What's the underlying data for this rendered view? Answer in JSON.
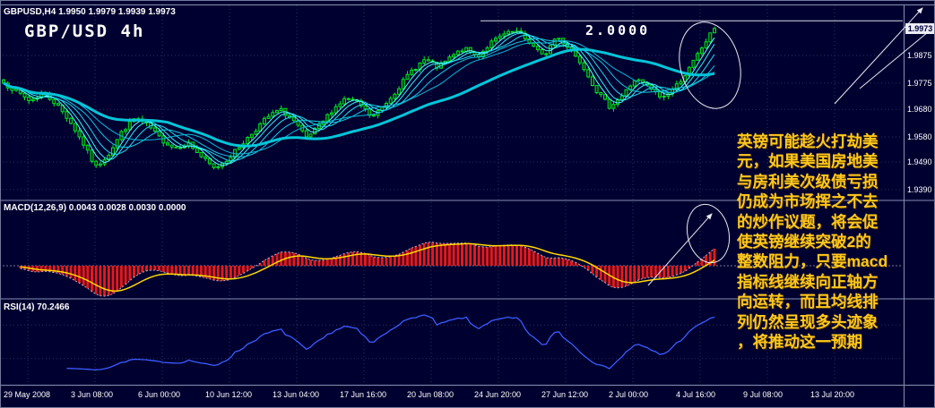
{
  "main_chart": {
    "title": "GBPUSD,H4 1.9950 1.9979 1.9939 1.9973",
    "big_label": "GBP/USD 4h",
    "resistance_label": "2.0000",
    "current_price_label": "1.9973"
  },
  "macd_panel": {
    "title": "MACD(12,26,9) 0.0043 0.0028 0.0030 0.0000"
  },
  "rsi_panel": {
    "title": "RSI(14) 70.2466"
  },
  "time_axis": {
    "labels": [
      "29 May 2008",
      "3 Jun 08:00",
      "6 Jun 00:00",
      "10 Jun 12:00",
      "13 Jun 04:00",
      "17 Jun 16:00",
      "20 Jun 08:00",
      "24 Jun 20:00",
      "27 Jun 12:00",
      "2 Jul 00:00",
      "4 Jul 16:00",
      "9 Jul 08:00",
      "13 Jul 20:00"
    ]
  },
  "annotation": {
    "lines": [
      "英镑可能趁火打劫美",
      "元，如果美国房地美",
      "与房利美次级债亏损",
      "仍成为市场挥之不去",
      "的炒作议题，将会促",
      "使英镑继续突破2的",
      "整数阻力，只要macd",
      "指标线继续向正轴方",
      "向运转，而且均线排",
      "列仍然呈现多头迹象",
      "，将推动这一预期"
    ]
  },
  "colors": {
    "background": "#000030",
    "grid": "#2e2e62",
    "candle": "#00e428",
    "candle_fill": "#062d0c",
    "ma_ribbon": [
      "#55ffff",
      "#33eef8",
      "#22dcee",
      "#11cbe2",
      "#06bad6"
    ],
    "ma_slow": "#00c6d8",
    "macd_hist": "#e81818",
    "macd_signal": "#ffd800",
    "macd_line": "#b8b8c8",
    "rsi": "#3c5cff",
    "annotation": "#ffc81e",
    "level_line": "#d8d8e8"
  },
  "chart_data": [
    {
      "type": "candlestick",
      "symbol": "GBPUSD",
      "period": "H4",
      "title": "GBPUSD,H4",
      "ohlc_display": {
        "open": "1.9950",
        "high": "1.9979",
        "low": "1.9939",
        "close": "1.9973"
      },
      "x_labels": [
        "29 May 2008",
        "3 Jun 08:00",
        "6 Jun 00:00",
        "10 Jun 12:00",
        "13 Jun 04:00",
        "17 Jun 16:00",
        "20 Jun 08:00",
        "24 Jun 20:00",
        "27 Jun 12:00",
        "2 Jul 00:00",
        "4 Jul 16:00",
        "9 Jul 08:00",
        "13 Jul 20:00"
      ],
      "y_ticks": [
        1.9875,
        1.9775,
        1.968,
        1.958,
        1.949,
        1.939
      ],
      "ylim": [
        1.9354,
        2.0056
      ],
      "resistance_level": 2.0,
      "current_price": 1.9973,
      "bars": 170,
      "close_samples": [
        1.9775,
        1.9745,
        1.971,
        1.974,
        1.97,
        1.964,
        1.956,
        1.947,
        1.952,
        1.96,
        1.965,
        1.962,
        1.957,
        1.954,
        1.956,
        1.951,
        1.9465,
        1.95,
        1.955,
        1.96,
        1.965,
        1.968,
        1.964,
        1.9575,
        1.962,
        1.968,
        1.972,
        1.97,
        1.965,
        1.97,
        1.976,
        1.982,
        1.986,
        1.983,
        1.987,
        1.99,
        1.987,
        1.992,
        1.995,
        1.996,
        1.992,
        1.987,
        1.9945,
        1.99,
        1.984,
        1.975,
        1.969,
        1.973,
        1.979,
        1.976,
        1.972,
        1.976,
        1.982,
        1.99,
        1.9973
      ],
      "ma_ribbon_periods": [
        4,
        6,
        9,
        13,
        18
      ],
      "ma_slow_period": 40
    },
    {
      "type": "line+histogram",
      "name": "MACD",
      "params": [
        12,
        26,
        9
      ],
      "display_values": [
        "0.0043",
        "0.0028",
        "0.0030",
        "0.0000"
      ],
      "derived_from": "close_samples"
    },
    {
      "type": "line",
      "name": "RSI",
      "params": [
        14
      ],
      "current": 70.2466,
      "levels": [
        30,
        70
      ],
      "ylim": [
        0,
        100
      ],
      "derived_from": "close_samples"
    }
  ]
}
